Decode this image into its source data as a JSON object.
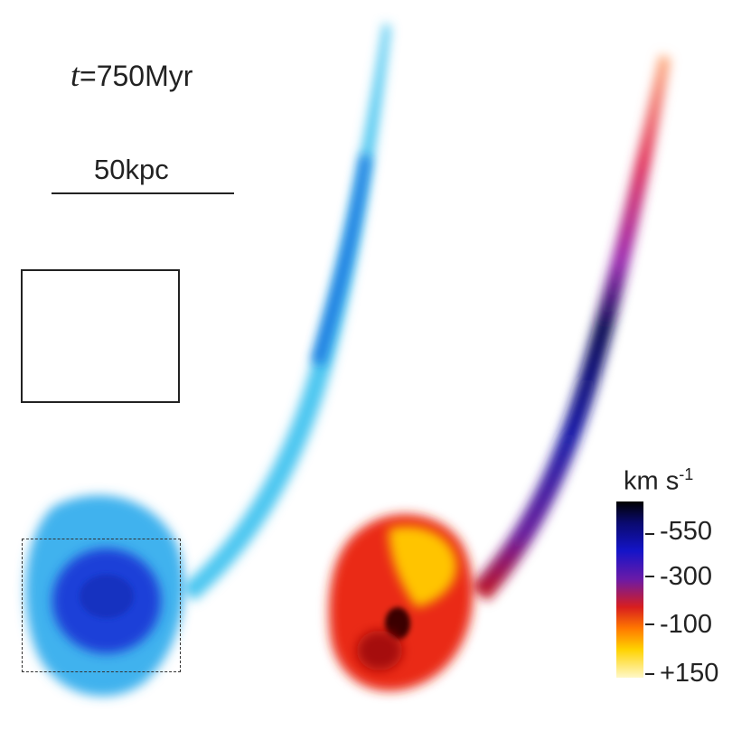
{
  "time_label": {
    "prefix": "t",
    "value": "=750Myr"
  },
  "scale_label": "50kpc",
  "colorbar": {
    "unit": "km s",
    "unit_exponent": "-1",
    "ticks": [
      "-550",
      "-300",
      "-100",
      "+150"
    ],
    "colors": [
      "#000000",
      "#1414c8",
      "#6a1aa8",
      "#d81e1e",
      "#ff7800",
      "#ffd200",
      "#fff8c8"
    ]
  },
  "panels": {
    "left": "density map (blue)",
    "right": "velocity map"
  }
}
